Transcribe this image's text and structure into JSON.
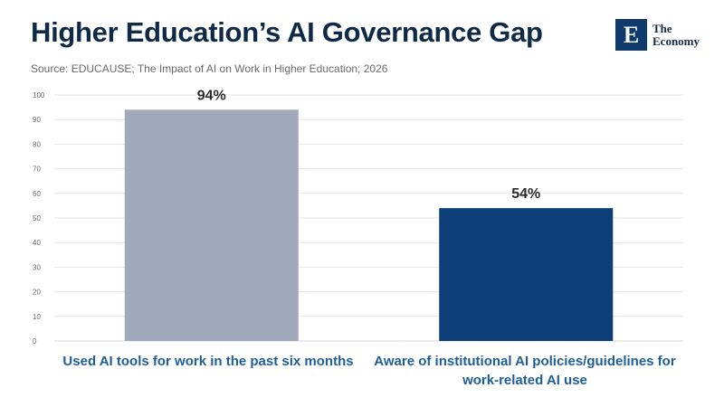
{
  "header": {
    "title": "Higher Education’s AI Governance Gap",
    "source": "Source: EDUCAUSE; The Impact of AI on Work in Higher Education; 2026"
  },
  "logo": {
    "mark": "E",
    "line1": "The",
    "line2": "Economy"
  },
  "chart_data": {
    "type": "bar",
    "title": "Higher Education’s AI Governance Gap",
    "xlabel": "",
    "ylabel": "",
    "ylim": [
      0,
      100
    ],
    "yticks": [
      0,
      10,
      20,
      30,
      40,
      50,
      60,
      70,
      80,
      90,
      100
    ],
    "grid": true,
    "categories": [
      "Used AI tools for work in the past six months",
      "Aware of institutional AI policies/guidelines for work-related AI use"
    ],
    "values": [
      94,
      54
    ],
    "data_labels": [
      "94%",
      "54%"
    ],
    "colors": [
      "#a0a8bb",
      "#0c3f78"
    ]
  }
}
